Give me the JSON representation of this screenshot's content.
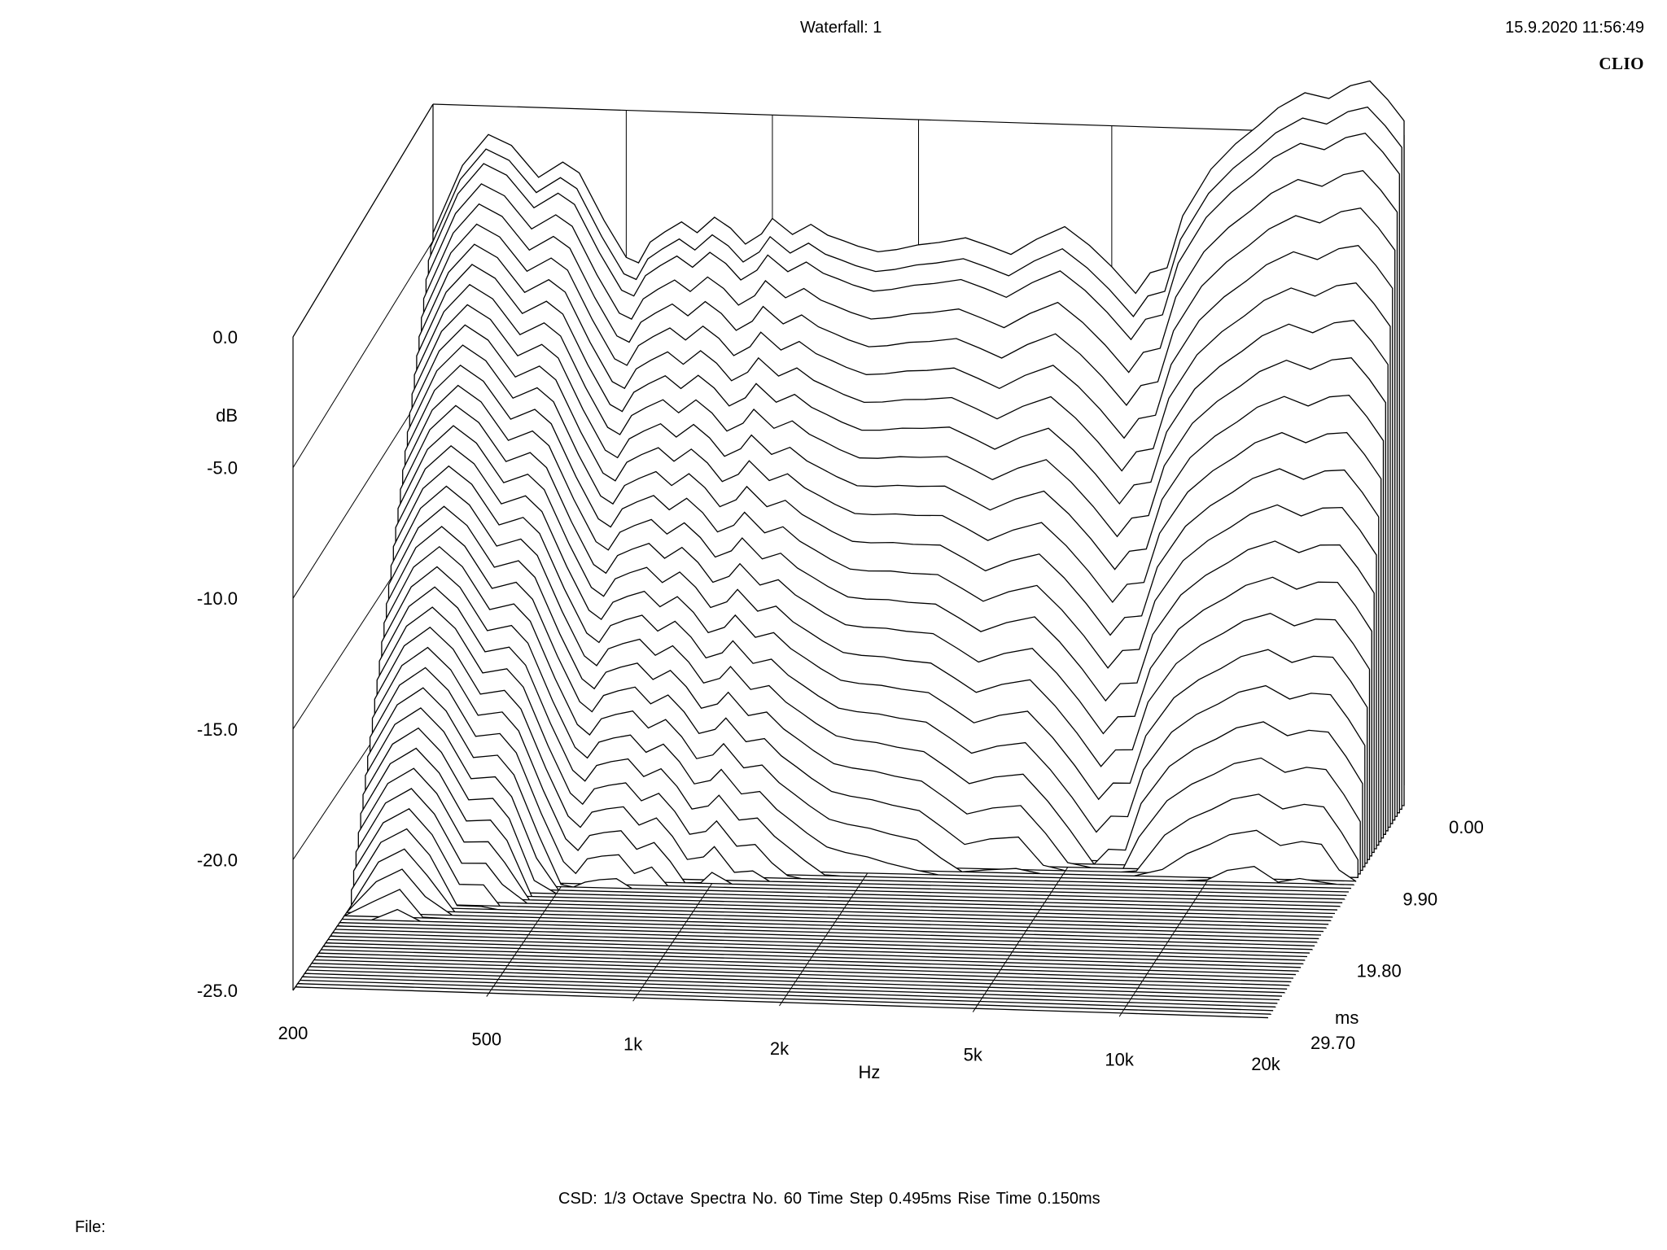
{
  "header": {
    "title": "Waterfall: 1",
    "timestamp": "15.9.2020 11:56:49",
    "brand": "CLIO"
  },
  "footer": {
    "info": "CSD:   1/3 Octave   Spectra No. 60   Time Step 0.495ms   Rise Time 0.150ms",
    "file_label": "File:"
  },
  "colors": {
    "line": "#000000",
    "background": "#ffffff"
  },
  "chart_data": {
    "type": "waterfall",
    "title": "Waterfall: 1",
    "analysis": "CSD",
    "smoothing": "1/3 Octave",
    "spectra_count": 60,
    "time_step_ms": 0.495,
    "rise_time_ms": 0.15,
    "x_axis": {
      "label": "Hz",
      "scale": "log",
      "range": [
        200,
        20000
      ],
      "ticks": [
        200,
        500,
        1000,
        2000,
        5000,
        10000,
        20000
      ],
      "tick_labels": [
        "200",
        "500",
        "1k",
        "2k",
        "5k",
        "10k",
        "20k"
      ]
    },
    "y_axis": {
      "label": "dB",
      "range": [
        -25,
        0
      ],
      "ticks": [
        0,
        -5,
        -10,
        -15,
        -20,
        -25
      ],
      "tick_labels": [
        "0.0",
        "-5.0",
        "-10.0",
        "-15.0",
        "-20.0",
        "-25.0"
      ]
    },
    "z_axis": {
      "label": "ms",
      "range": [
        0,
        29.7
      ],
      "ticks": [
        0,
        9.9,
        19.8,
        29.7
      ],
      "tick_labels": [
        "0.00",
        "9.90",
        "19.80",
        "29.70"
      ]
    },
    "first_spectrum": {
      "time_ms": 0,
      "points": [
        [
          200,
          -3.8
        ],
        [
          230,
          -1.2
        ],
        [
          260,
          0.0
        ],
        [
          290,
          -0.4
        ],
        [
          330,
          -1.6
        ],
        [
          370,
          -1.0
        ],
        [
          400,
          -1.4
        ],
        [
          450,
          -3.2
        ],
        [
          500,
          -4.6
        ],
        [
          530,
          -4.8
        ],
        [
          560,
          -4.0
        ],
        [
          600,
          -3.6
        ],
        [
          650,
          -3.2
        ],
        [
          700,
          -3.6
        ],
        [
          760,
          -3.0
        ],
        [
          820,
          -3.4
        ],
        [
          880,
          -4.0
        ],
        [
          950,
          -3.6
        ],
        [
          1000,
          -3.0
        ],
        [
          1100,
          -3.6
        ],
        [
          1200,
          -3.2
        ],
        [
          1300,
          -3.6
        ],
        [
          1400,
          -3.8
        ],
        [
          1500,
          -4.0
        ],
        [
          1650,
          -4.2
        ],
        [
          1800,
          -4.1
        ],
        [
          2000,
          -3.9
        ],
        [
          2200,
          -3.8
        ],
        [
          2500,
          -3.6
        ],
        [
          2800,
          -3.9
        ],
        [
          3100,
          -4.2
        ],
        [
          3500,
          -3.6
        ],
        [
          4000,
          -3.1
        ],
        [
          4500,
          -3.8
        ],
        [
          5000,
          -4.6
        ],
        [
          5600,
          -5.6
        ],
        [
          6000,
          -4.8
        ],
        [
          6500,
          -4.6
        ],
        [
          7000,
          -2.6
        ],
        [
          8000,
          -0.8
        ],
        [
          9000,
          0.2
        ],
        [
          10000,
          0.9
        ],
        [
          11000,
          1.6
        ],
        [
          12500,
          2.2
        ],
        [
          14000,
          2.0
        ],
        [
          15500,
          2.5
        ],
        [
          17000,
          2.7
        ],
        [
          18500,
          2.0
        ],
        [
          20000,
          1.2
        ]
      ]
    },
    "decay_per_slice_db": [
      0.0,
      0.4,
      0.8,
      1.4,
      2.0,
      2.6,
      3.2,
      3.8,
      4.4,
      5.0,
      5.6,
      6.2,
      6.8,
      7.4,
      8.0,
      8.6,
      9.2,
      9.8,
      10.4,
      11.0,
      11.6,
      12.2,
      12.8,
      13.4,
      14.0,
      14.6,
      15.2,
      15.8,
      16.4,
      17.0,
      17.6,
      18.2,
      18.8,
      19.4,
      20.0,
      20.6,
      21.2,
      21.8,
      22.4,
      23.0,
      23.6,
      24.2,
      24.8,
      25.4,
      26.0,
      26.6,
      27.2,
      27.8,
      28.4,
      29.0,
      29.6,
      30.2,
      30.8,
      31.4,
      32.0,
      32.6,
      33.2,
      33.8,
      34.4,
      35.0
    ]
  }
}
